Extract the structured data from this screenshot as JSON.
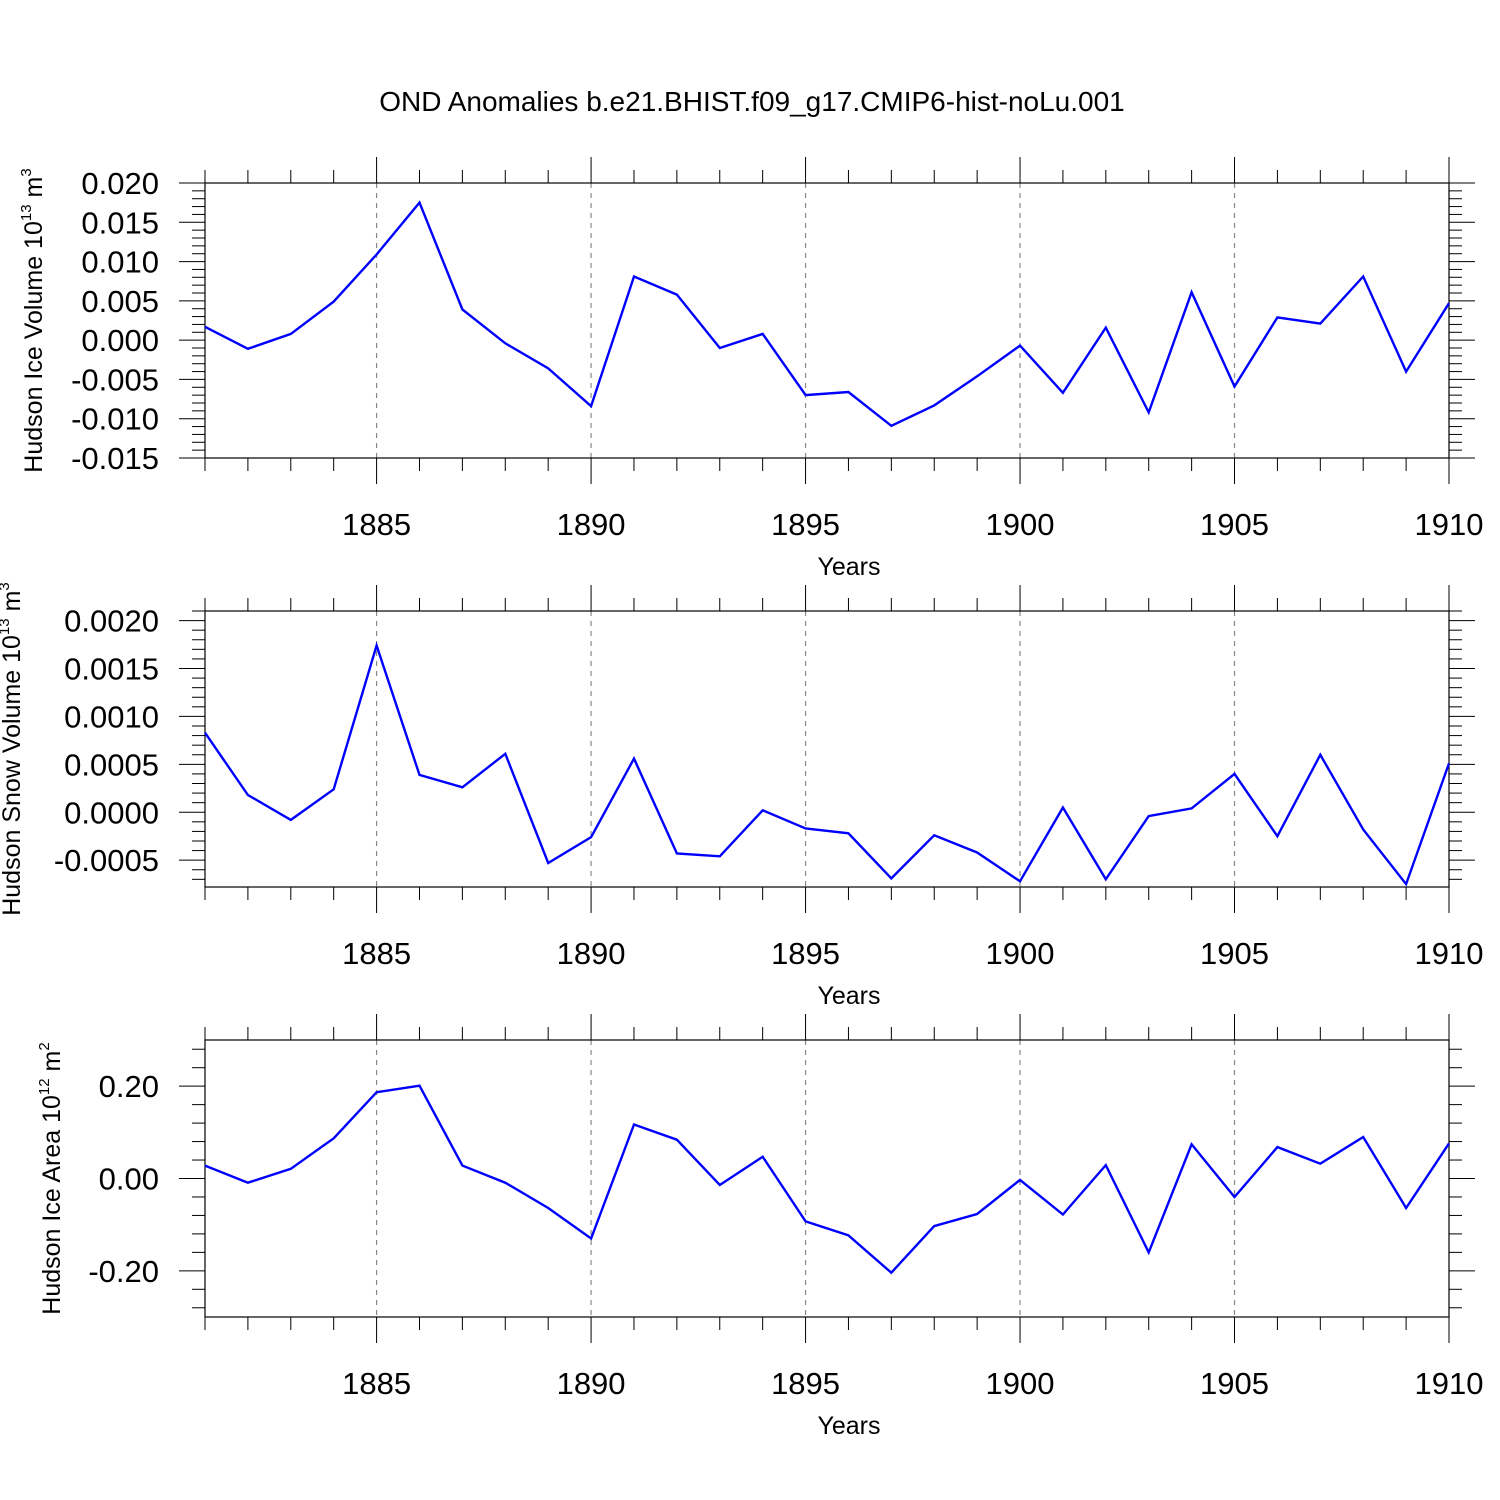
{
  "figure": {
    "title": "OND Anomalies b.e21.BHIST.f09_g17.CMIP6-hist-noLu.001",
    "line_color": "#0000ff",
    "grid_color": "#888888"
  },
  "chart_data": [
    {
      "type": "line",
      "title": "",
      "xlabel": "Years",
      "ylabel": "Hudson Ice Volume 10",
      "ylabel_exp": "13",
      "ylabel_unit": " m",
      "ylabel_unit_exp": "3",
      "xlim": [
        1881,
        1910
      ],
      "ylim": [
        -0.015,
        0.02
      ],
      "xticks": [
        1885,
        1890,
        1895,
        1900,
        1905,
        1910
      ],
      "xtick_labels": [
        "1885",
        "1890",
        "1895",
        "1900",
        "1905",
        "1910"
      ],
      "yticks": [
        -0.015,
        -0.01,
        -0.005,
        0.0,
        0.005,
        0.01,
        0.015,
        0.02
      ],
      "ytick_labels": [
        "-0.015",
        "-0.010",
        "-0.005",
        "0.000",
        "0.005",
        "0.010",
        "0.015",
        "0.020"
      ],
      "grid": "x-dashed",
      "x": [
        1881,
        1882,
        1883,
        1884,
        1885,
        1886,
        1887,
        1888,
        1889,
        1890,
        1891,
        1892,
        1893,
        1894,
        1895,
        1896,
        1897,
        1898,
        1899,
        1900,
        1901,
        1902,
        1903,
        1904,
        1905,
        1906,
        1907,
        1908,
        1909,
        1910
      ],
      "series": [
        {
          "values": [
            0.0017,
            -0.0011,
            0.0008,
            0.0049,
            0.0109,
            0.0175,
            0.0039,
            -0.0004,
            -0.0036,
            -0.0084,
            0.0081,
            0.0058,
            -0.001,
            0.0008,
            -0.007,
            -0.0066,
            -0.0109,
            -0.0083,
            -0.0046,
            -0.0007,
            -0.0067,
            0.0016,
            -0.0092,
            0.0061,
            -0.0059,
            0.0029,
            0.0021,
            0.0081,
            -0.004,
            0.0047
          ]
        }
      ]
    },
    {
      "type": "line",
      "title": "",
      "xlabel": "Years",
      "ylabel": "Hudson Snow Volume 10",
      "ylabel_exp": "13",
      "ylabel_unit": " m",
      "ylabel_unit_exp": "3",
      "xlim": [
        1881,
        1910
      ],
      "ylim": [
        -0.00078,
        0.0021
      ],
      "xticks": [
        1885,
        1890,
        1895,
        1900,
        1905,
        1910
      ],
      "xtick_labels": [
        "1885",
        "1890",
        "1895",
        "1900",
        "1905",
        "1910"
      ],
      "yticks": [
        -0.0005,
        0.0,
        0.0005,
        0.001,
        0.0015,
        0.002
      ],
      "ytick_labels": [
        "-0.0005",
        "0.0000",
        "0.0005",
        "0.0010",
        "0.0015",
        "0.0020"
      ],
      "grid": "x-dashed",
      "x": [
        1881,
        1882,
        1883,
        1884,
        1885,
        1886,
        1887,
        1888,
        1889,
        1890,
        1891,
        1892,
        1893,
        1894,
        1895,
        1896,
        1897,
        1898,
        1899,
        1900,
        1901,
        1902,
        1903,
        1904,
        1905,
        1906,
        1907,
        1908,
        1909,
        1910
      ],
      "series": [
        {
          "values": [
            0.00083,
            0.00018,
            -8e-05,
            0.00024,
            0.00174,
            0.00039,
            0.00026,
            0.00061,
            -0.00053,
            -0.00026,
            0.00056,
            -0.00043,
            -0.00046,
            2e-05,
            -0.00017,
            -0.00022,
            -0.00069,
            -0.00024,
            -0.00042,
            -0.00072,
            5e-05,
            -0.0007,
            -4e-05,
            4e-05,
            0.0004,
            -0.00025,
            0.0006,
            -0.00018,
            -0.00075,
            0.00051
          ]
        }
      ]
    },
    {
      "type": "line",
      "title": "",
      "xlabel": "Years",
      "ylabel": "Hudson Ice Area 10",
      "ylabel_exp": "12",
      "ylabel_unit": " m",
      "ylabel_unit_exp": "2",
      "xlim": [
        1881,
        1910
      ],
      "ylim": [
        -0.3,
        0.3
      ],
      "xticks": [
        1885,
        1890,
        1895,
        1900,
        1905,
        1910
      ],
      "xtick_labels": [
        "1885",
        "1890",
        "1895",
        "1900",
        "1905",
        "1910"
      ],
      "yticks": [
        -0.2,
        0.0,
        0.2
      ],
      "ytick_labels": [
        "-0.20",
        "0.00",
        "0.20"
      ],
      "grid": "x-dashed",
      "x": [
        1881,
        1882,
        1883,
        1884,
        1885,
        1886,
        1887,
        1888,
        1889,
        1890,
        1891,
        1892,
        1893,
        1894,
        1895,
        1896,
        1897,
        1898,
        1899,
        1900,
        1901,
        1902,
        1903,
        1904,
        1905,
        1906,
        1907,
        1908,
        1909,
        1910
      ],
      "series": [
        {
          "values": [
            0.028,
            -0.009,
            0.021,
            0.087,
            0.187,
            0.201,
            0.028,
            -0.009,
            -0.064,
            -0.13,
            0.117,
            0.084,
            -0.014,
            0.047,
            -0.093,
            -0.123,
            -0.204,
            -0.103,
            -0.077,
            -0.003,
            -0.078,
            0.029,
            -0.16,
            0.074,
            -0.04,
            0.068,
            0.032,
            0.09,
            -0.064,
            0.076
          ]
        }
      ]
    }
  ]
}
